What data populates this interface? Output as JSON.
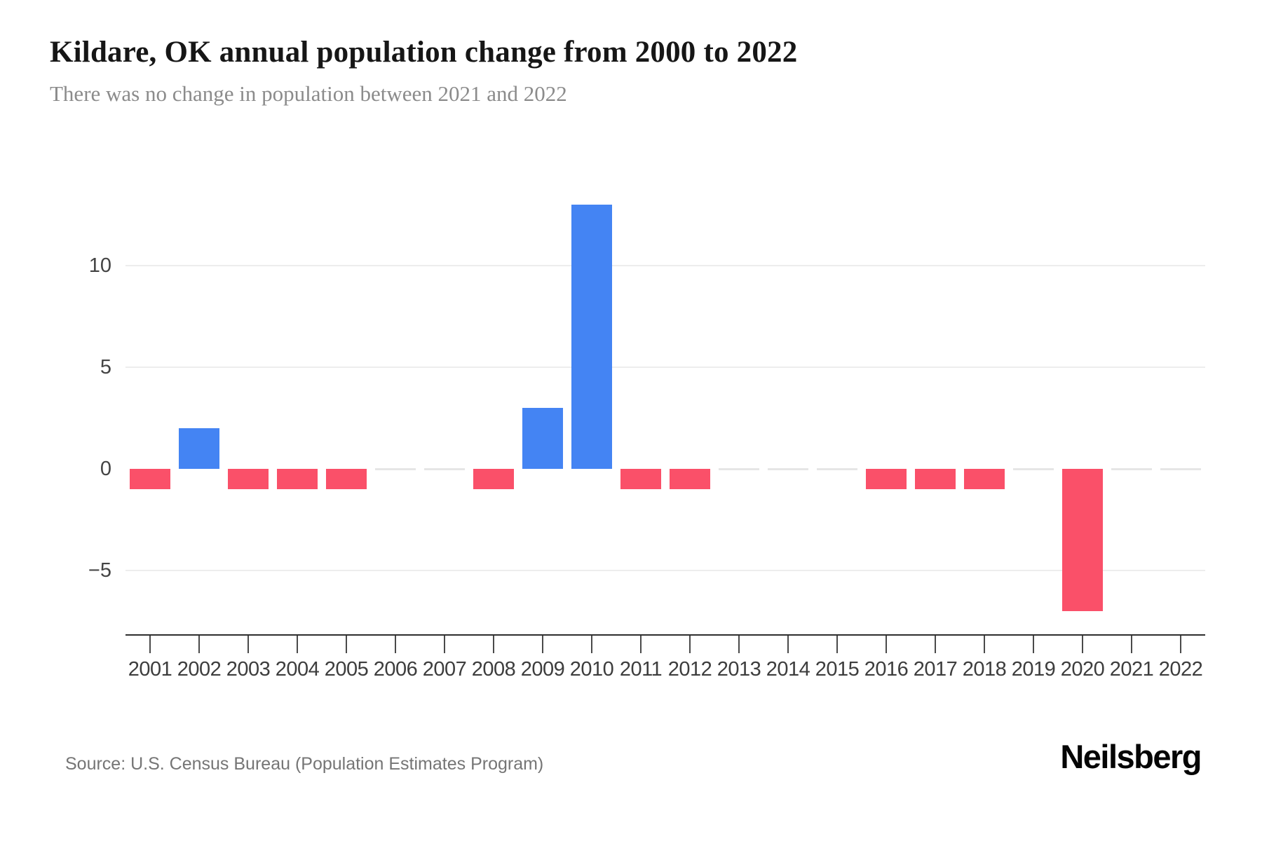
{
  "header": {
    "title": "Kildare, OK annual population change from 2000 to 2022",
    "subtitle": "There was no change in population between 2021 and 2022"
  },
  "footer": {
    "source": "Source: U.S. Census Bureau (Population Estimates Program)",
    "brand": "Neilsberg"
  },
  "chart_data": {
    "type": "bar",
    "title": "Kildare, OK annual population change from 2000 to 2022",
    "subtitle": "There was no change in population between 2021 and 2022",
    "categories": [
      "2001",
      "2002",
      "2003",
      "2004",
      "2005",
      "2006",
      "2007",
      "2008",
      "2009",
      "2010",
      "2011",
      "2012",
      "2013",
      "2014",
      "2015",
      "2016",
      "2017",
      "2018",
      "2019",
      "2020",
      "2021",
      "2022"
    ],
    "values": [
      -1,
      2,
      -1,
      -1,
      -1,
      0,
      0,
      -1,
      3,
      13,
      -1,
      -1,
      0,
      0,
      0,
      -1,
      -1,
      -1,
      0,
      -7,
      0,
      0
    ],
    "xlabel": "",
    "ylabel": "",
    "ylim": [
      -8.1,
      13.8
    ],
    "yticks": [
      {
        "value": -5,
        "label": "−5"
      },
      {
        "value": 0,
        "label": "0"
      },
      {
        "value": 5,
        "label": "5"
      },
      {
        "value": 10,
        "label": "10"
      }
    ],
    "grid": "horizontal",
    "legend": false,
    "zero_years_rendered_as": "thin gray segment at baseline",
    "colors": {
      "positive": "#4484F3",
      "negative": "#FA5069",
      "zero_segment": "#E6E6E6",
      "gridline": "#EDEDED",
      "axis": "#2E2E2E"
    }
  }
}
